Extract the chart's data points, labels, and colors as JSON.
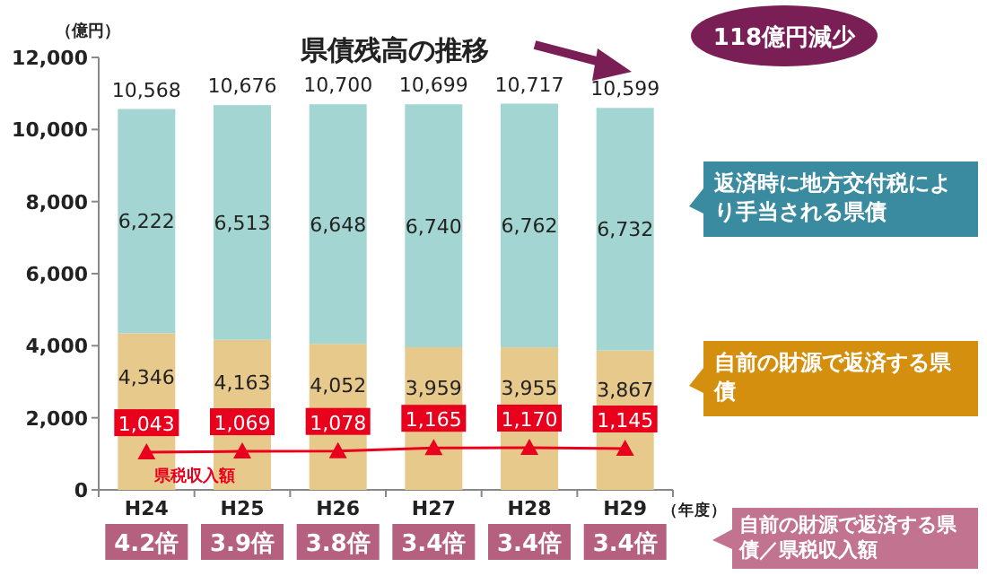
{
  "chart_data": {
    "type": "bar",
    "stacked": true,
    "title": "県債残高の推移",
    "ylabel": "（億円）",
    "xlabel": "（年度）",
    "categories": [
      "H24",
      "H25",
      "H26",
      "H27",
      "H28",
      "H29"
    ],
    "series": [
      {
        "name": "自前の財源で返済する県債",
        "color": "#e8c98c",
        "values": [
          4346,
          4163,
          4052,
          3959,
          3955,
          3867
        ],
        "value_labels": [
          "4,346",
          "4,163",
          "4,052",
          "3,959",
          "3,955",
          "3,867"
        ]
      },
      {
        "name": "返済時に地方交付税により手当される県債",
        "color": "#a3d6d2",
        "values": [
          6222,
          6513,
          6648,
          6740,
          6762,
          6732
        ],
        "value_labels": [
          "6,222",
          "6,513",
          "6,648",
          "6,740",
          "6,762",
          "6,732"
        ]
      },
      {
        "name": "県税収入額",
        "type": "line",
        "color": "#e8001c",
        "marker": "triangle",
        "values": [
          1043,
          1069,
          1078,
          1165,
          1170,
          1145
        ],
        "value_labels": [
          "1,043",
          "1,069",
          "1,078",
          "1,165",
          "1,170",
          "1,145"
        ]
      }
    ],
    "totals": [
      "10,568",
      "10,676",
      "10,700",
      "10,699",
      "10,717",
      "10,599"
    ],
    "ylim": [
      0,
      12000
    ],
    "yticks": [
      {
        "value": 0,
        "label": "0"
      },
      {
        "value": 2000,
        "label": "2,000"
      },
      {
        "value": 4000,
        "label": "4,000"
      },
      {
        "value": 6000,
        "label": "6,000"
      },
      {
        "value": 8000,
        "label": "8,000"
      },
      {
        "value": 10000,
        "label": "10,000"
      },
      {
        "value": 12000,
        "label": "12,000"
      }
    ],
    "annotations": [
      "118億円減少",
      "自前の財源で返済する県債／県税収入額",
      "4.2倍",
      "3.9倍",
      "3.8倍",
      "3.4倍",
      "3.4倍",
      "3.4倍"
    ],
    "grid": false
  }
}
